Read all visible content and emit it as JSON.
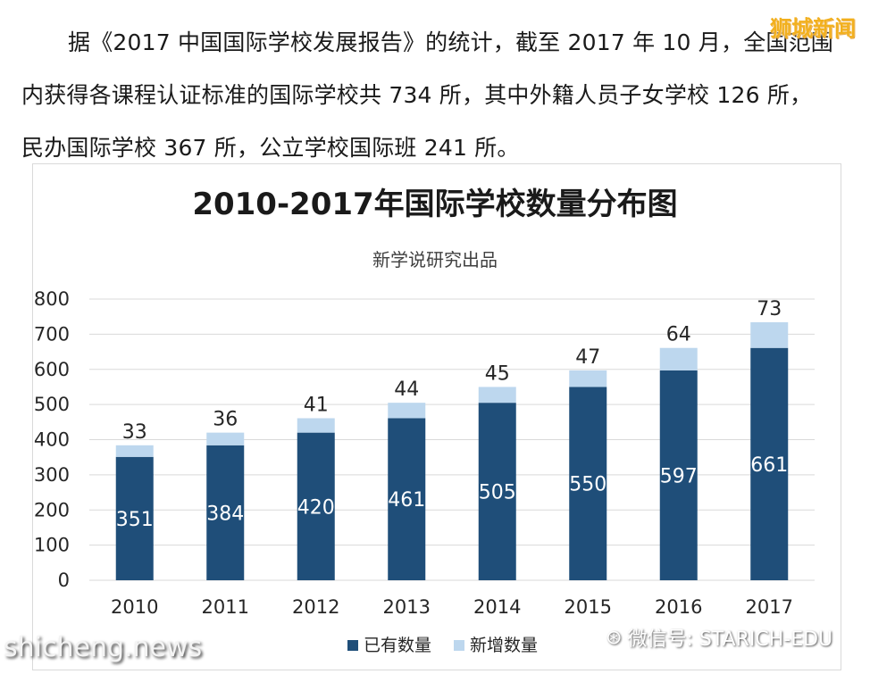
{
  "article": {
    "line1": "据《2017 中国国际学校发展报告》的统计，截至 2017 年 10 月，全国范围",
    "line2": "内获得各课程认证标准的国际学校共 734 所，其中外籍人员子女学校 126 所，",
    "line3": "民办国际学校 367 所，公立学校国际班 241 所。"
  },
  "watermarks": {
    "corner": "狮城新闻",
    "site": "shicheng.news",
    "wechat": "微信号: STARICH-EDU",
    "wechat_icon": "wechat-icon"
  },
  "colors": {
    "existing": "#1f4e79",
    "new": "#bdd7ee",
    "grid": "#d9d9d9"
  },
  "chart_data": {
    "type": "bar",
    "stacked": true,
    "title": "2010-2017年国际学校数量分布图",
    "subtitle": "新学说研究出品",
    "categories": [
      "2010",
      "2011",
      "2012",
      "2013",
      "2014",
      "2015",
      "2016",
      "2017"
    ],
    "series": [
      {
        "name": "已有数量",
        "values": [
          351,
          384,
          420,
          461,
          505,
          550,
          597,
          661
        ]
      },
      {
        "name": "新增数量",
        "values": [
          33,
          36,
          41,
          44,
          45,
          47,
          64,
          73
        ]
      }
    ],
    "yticks": [
      "0",
      "100",
      "200",
      "300",
      "400",
      "500",
      "600",
      "700",
      "800"
    ],
    "ylim": [
      0,
      800
    ],
    "grid": true,
    "legend_position": "bottom"
  }
}
